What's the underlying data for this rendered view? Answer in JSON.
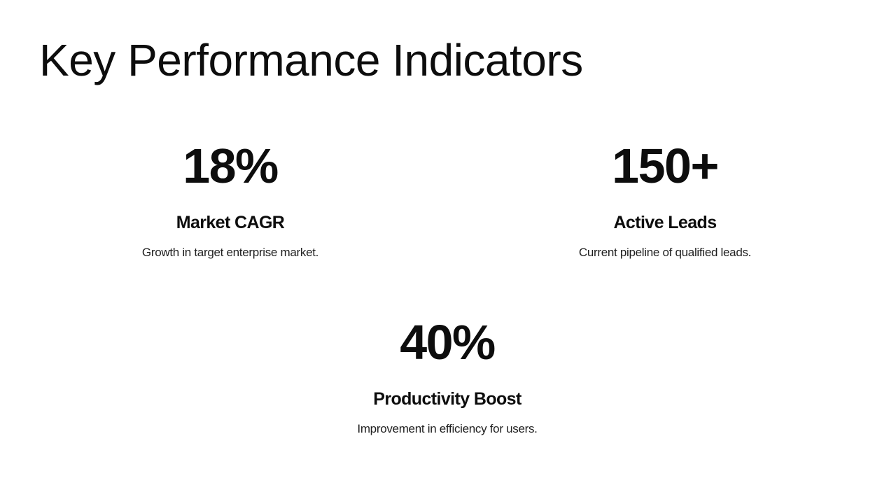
{
  "slide": {
    "title": "Key Performance Indicators",
    "kpis": [
      {
        "value": "18%",
        "label": "Market CAGR",
        "description": "Growth in target enterprise market."
      },
      {
        "value": "150+",
        "label": "Active Leads",
        "description": "Current pipeline of qualified leads."
      },
      {
        "value": "40%",
        "label": "Productivity Boost",
        "description": "Improvement in efficiency for users."
      }
    ],
    "colors": {
      "background": "#ffffff",
      "text": "#0d0d0d"
    }
  }
}
